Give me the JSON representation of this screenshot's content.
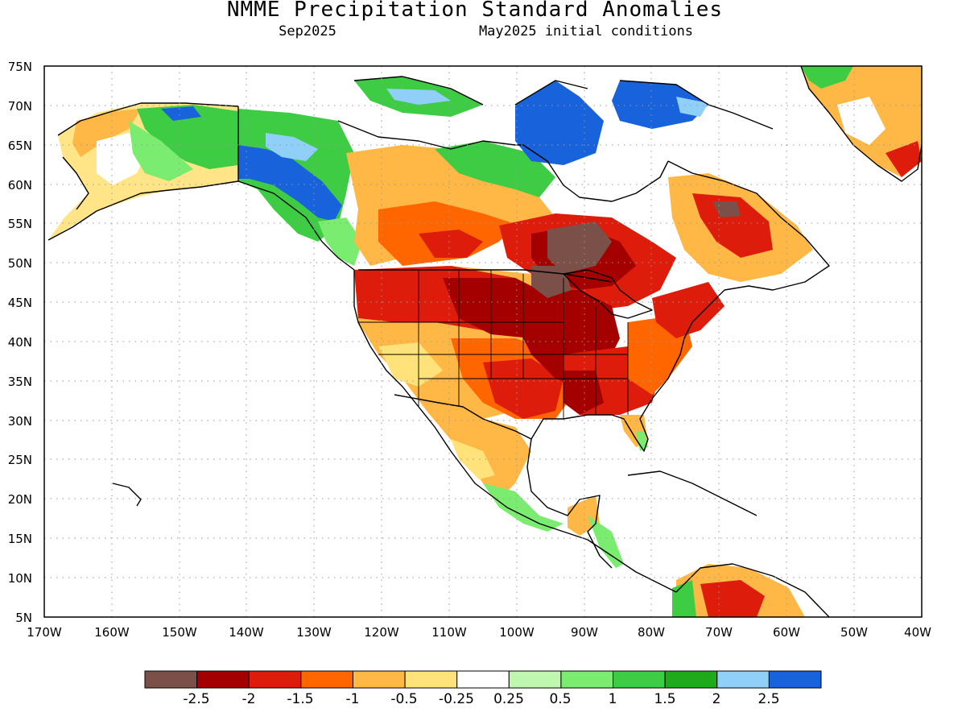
{
  "title": "NMME Precipitation Standard Anomalies",
  "subtitle_left": "Sep2025",
  "subtitle_right": "May2025 initial conditions",
  "map": {
    "lat_labels": [
      "75N",
      "70N",
      "65N",
      "60N",
      "55N",
      "50N",
      "45N",
      "40N",
      "35N",
      "30N",
      "25N",
      "20N",
      "15N",
      "10N",
      "5N"
    ],
    "lon_labels": [
      "170W",
      "160W",
      "150W",
      "140W",
      "130W",
      "120W",
      "110W",
      "100W",
      "90W",
      "80W",
      "70W",
      "60W",
      "50W",
      "40W"
    ],
    "lat_range": [
      5,
      75
    ],
    "lon_range": [
      -170,
      -40
    ],
    "grid": "dotted"
  },
  "colorbar": {
    "colors": [
      "#7a5048",
      "#a50000",
      "#dd1c0c",
      "#ff6600",
      "#ffb845",
      "#ffe27a",
      "#ffffff",
      "#c0f7b0",
      "#7aec70",
      "#3fcc45",
      "#1faa1c",
      "#90cff7",
      "#1863dc"
    ],
    "labels": [
      "-2.5",
      "-2",
      "-1.5",
      "-1",
      "-0.5",
      "-0.25",
      "0.25",
      "0.5",
      "1",
      "1.5",
      "2",
      "2.5"
    ]
  },
  "colors": {
    "land_outline": "#000000",
    "gridline": "#9a9a9a"
  }
}
